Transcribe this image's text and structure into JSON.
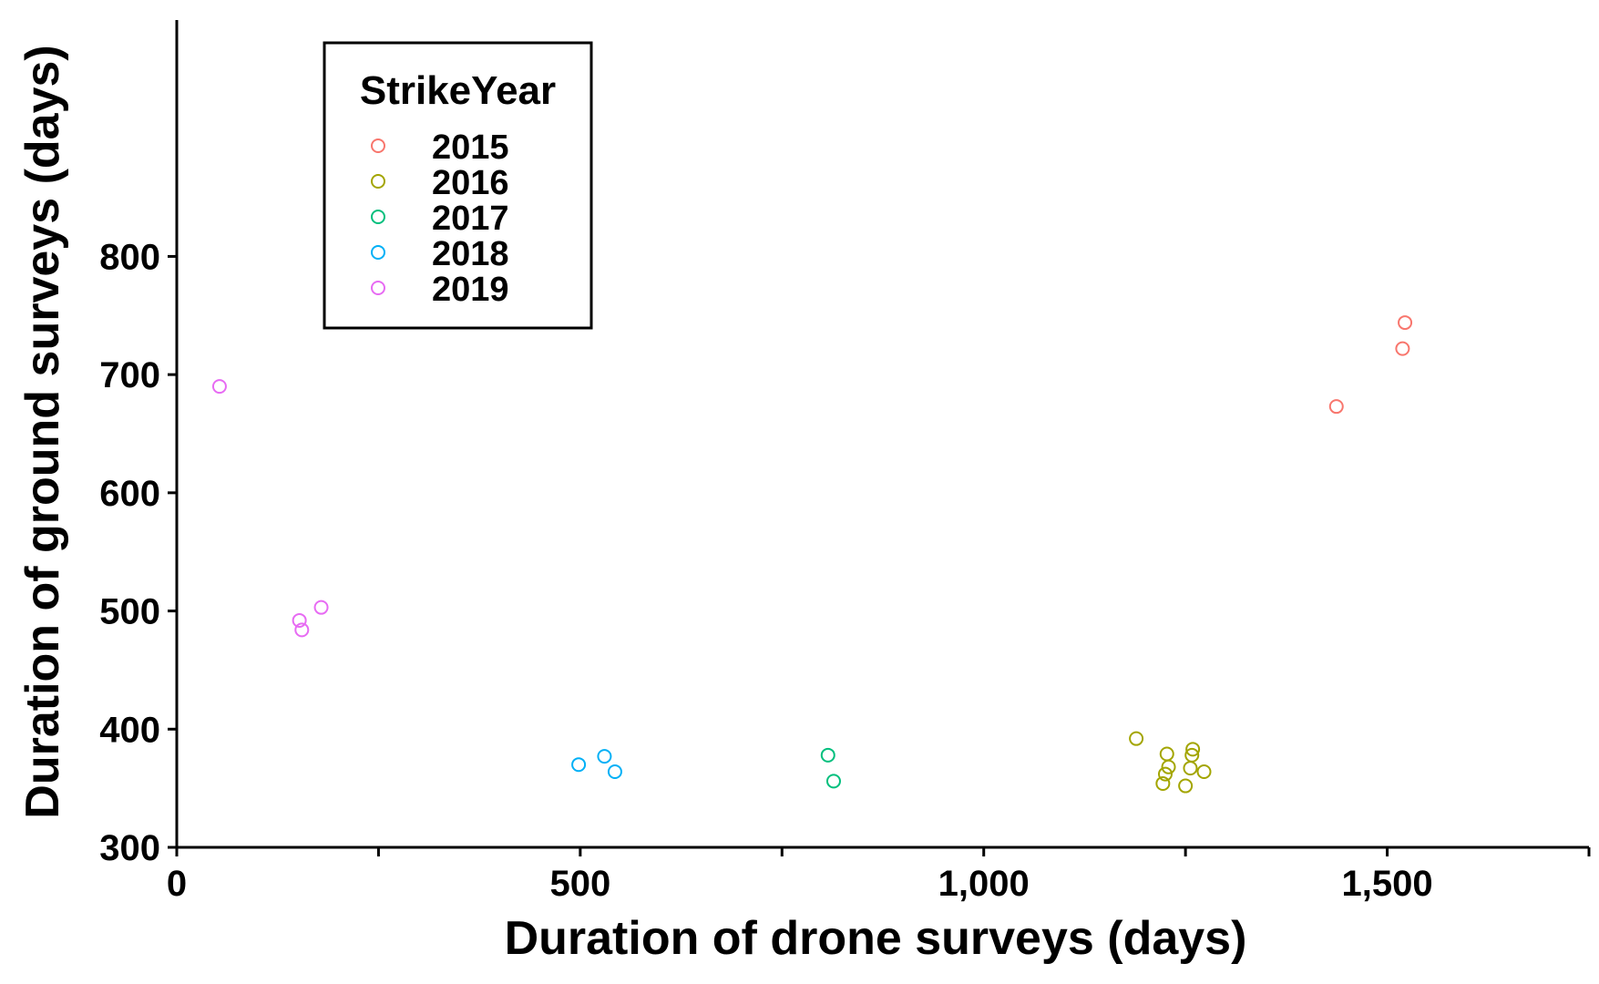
{
  "chart_data": {
    "type": "scatter",
    "title": "",
    "xlabel": "Duration of drone surveys (days)",
    "ylabel": "Duration of ground surveys (days)",
    "xlim": [
      0,
      1750
    ],
    "ylim": [
      300,
      1000
    ],
    "x_ticks": [
      0,
      250,
      500,
      750,
      1000,
      1250,
      1500,
      1750
    ],
    "x_tick_labels": [
      "0",
      "",
      "500",
      "",
      "1,000",
      "",
      "1,500",
      ""
    ],
    "y_ticks": [
      300,
      400,
      500,
      600,
      700,
      800
    ],
    "y_tick_labels": [
      "300",
      "400",
      "500",
      "600",
      "700",
      "800"
    ],
    "grid": false,
    "marker": "open-circle",
    "legend": {
      "title": "StrikeYear",
      "position": "top-left"
    },
    "series": [
      {
        "name": "2015",
        "color": "#F8766D",
        "points": [
          [
            1437,
            673
          ],
          [
            1519,
            722
          ],
          [
            1522,
            744
          ]
        ]
      },
      {
        "name": "2016",
        "color": "#A3A500",
        "points": [
          [
            1189,
            392
          ],
          [
            1227,
            379
          ],
          [
            1229,
            368
          ],
          [
            1225,
            362
          ],
          [
            1222,
            354
          ],
          [
            1250,
            352
          ],
          [
            1256,
            367
          ],
          [
            1258,
            378
          ],
          [
            1259,
            383
          ],
          [
            1273,
            364
          ]
        ]
      },
      {
        "name": "2017",
        "color": "#00BF7D",
        "points": [
          [
            807,
            378
          ],
          [
            814,
            356
          ]
        ]
      },
      {
        "name": "2018",
        "color": "#00B0F6",
        "points": [
          [
            498,
            370
          ],
          [
            530,
            377
          ],
          [
            543,
            364
          ]
        ]
      },
      {
        "name": "2019",
        "color": "#E76BF3",
        "points": [
          [
            53,
            690
          ],
          [
            152,
            492
          ],
          [
            155,
            484
          ],
          [
            179,
            503
          ]
        ]
      }
    ]
  }
}
